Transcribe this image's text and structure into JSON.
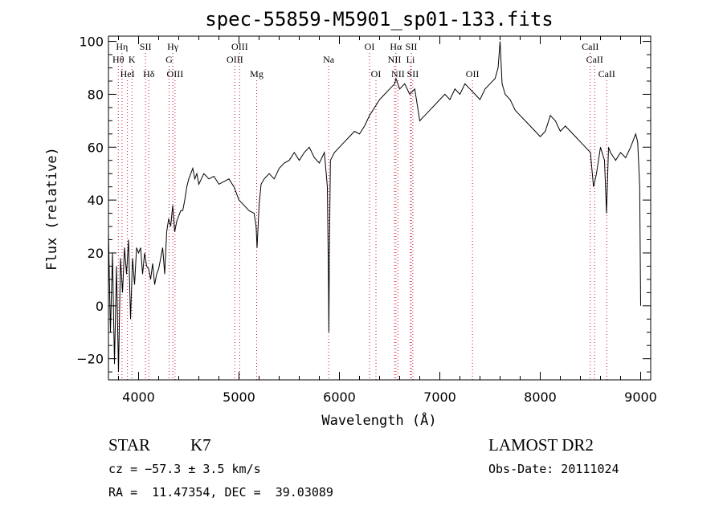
{
  "chart_data": {
    "type": "line",
    "title": "spec-55859-M5901_sp01-133.fits",
    "xlabel": "Wavelength (Å)",
    "ylabel": "Flux (relative)",
    "xlim": [
      3700,
      9100
    ],
    "ylim": [
      -28,
      102
    ],
    "xticks": [
      4000,
      5000,
      6000,
      7000,
      8000,
      9000
    ],
    "yticks": [
      -20,
      0,
      20,
      40,
      60,
      80,
      100
    ],
    "grid": false,
    "series": [
      {
        "x": [
          3700,
          3720,
          3740,
          3760,
          3780,
          3800,
          3820,
          3840,
          3860,
          3880,
          3900,
          3920,
          3940,
          3960,
          3980,
          4000,
          4020,
          4040,
          4060,
          4080,
          4100,
          4120,
          4140,
          4160,
          4180,
          4200,
          4220,
          4240,
          4260,
          4280,
          4300,
          4320,
          4340,
          4360,
          4380,
          4400,
          4420,
          4440,
          4460,
          4480,
          4500,
          4520,
          4540,
          4560,
          4580,
          4600,
          4650,
          4700,
          4750,
          4800,
          4850,
          4900,
          4950,
          5000,
          5050,
          5100,
          5150,
          5170,
          5180,
          5200,
          5220,
          5250,
          5300,
          5350,
          5400,
          5450,
          5500,
          5550,
          5600,
          5650,
          5700,
          5750,
          5800,
          5850,
          5880,
          5890,
          5895,
          5900,
          5910,
          5950,
          6000,
          6050,
          6100,
          6150,
          6200,
          6250,
          6300,
          6350,
          6400,
          6450,
          6500,
          6550,
          6563,
          6600,
          6650,
          6700,
          6750,
          6800,
          6850,
          6900,
          6950,
          7000,
          7050,
          7100,
          7150,
          7200,
          7250,
          7300,
          7350,
          7400,
          7450,
          7500,
          7550,
          7580,
          7600,
          7620,
          7650,
          7700,
          7750,
          7800,
          7850,
          7900,
          7950,
          8000,
          8050,
          8100,
          8150,
          8200,
          8250,
          8300,
          8350,
          8400,
          8450,
          8500,
          8530,
          8560,
          8600,
          8640,
          8660,
          8680,
          8700,
          8750,
          8800,
          8850,
          8900,
          8950,
          8970,
          8990,
          9000
        ],
        "y": [
          28,
          -10,
          20,
          -22,
          15,
          -25,
          18,
          5,
          22,
          12,
          25,
          -5,
          18,
          8,
          22,
          20,
          22,
          12,
          20,
          15,
          14,
          10,
          16,
          8,
          12,
          14,
          18,
          22,
          12,
          28,
          33,
          30,
          38,
          28,
          32,
          34,
          36,
          36,
          40,
          45,
          48,
          50,
          52,
          48,
          50,
          46,
          50,
          48,
          49,
          46,
          47,
          48,
          45,
          40,
          38,
          36,
          35,
          30,
          22,
          38,
          46,
          48,
          50,
          48,
          52,
          54,
          55,
          58,
          55,
          58,
          60,
          56,
          54,
          58,
          45,
          12,
          -10,
          20,
          55,
          58,
          60,
          62,
          64,
          66,
          65,
          68,
          72,
          75,
          78,
          80,
          82,
          84,
          86,
          82,
          84,
          80,
          82,
          70,
          72,
          74,
          76,
          78,
          80,
          78,
          82,
          80,
          84,
          82,
          80,
          78,
          82,
          84,
          86,
          90,
          100,
          84,
          80,
          78,
          74,
          72,
          70,
          68,
          66,
          64,
          66,
          72,
          70,
          66,
          68,
          66,
          64,
          62,
          60,
          58,
          45,
          50,
          60,
          55,
          35,
          60,
          58,
          55,
          58,
          56,
          60,
          65,
          62,
          45,
          0
        ]
      }
    ],
    "annotations": [
      {
        "label": "Hη",
        "x": 3835,
        "row": 1
      },
      {
        "label": "Hθ",
        "x": 3798,
        "row": 2
      },
      {
        "label": "K",
        "x": 3934,
        "row": 2
      },
      {
        "label": "HeI",
        "x": 3889,
        "row": 3
      },
      {
        "label": "SII",
        "x": 4069,
        "row": 1
      },
      {
        "label": "Hδ",
        "x": 4102,
        "row": 3
      },
      {
        "label": "Hγ",
        "x": 4341,
        "row": 1
      },
      {
        "label": "G",
        "x": 4304,
        "row": 2
      },
      {
        "label": "OIII",
        "x": 4363,
        "row": 3
      },
      {
        "label": "OIII",
        "x": 5007,
        "row": 1
      },
      {
        "label": "OIII",
        "x": 4959,
        "row": 2
      },
      {
        "label": "Mg",
        "x": 5176,
        "row": 3
      },
      {
        "label": "Na",
        "x": 5893,
        "row": 2
      },
      {
        "label": "OI",
        "x": 6300,
        "row": 1
      },
      {
        "label": "OI",
        "x": 6364,
        "row": 3
      },
      {
        "label": "Hα",
        "x": 6563,
        "row": 1
      },
      {
        "label": "SII",
        "x": 6716,
        "row": 1
      },
      {
        "label": "NII",
        "x": 6548,
        "row": 2
      },
      {
        "label": "Li",
        "x": 6708,
        "row": 2
      },
      {
        "label": "NII",
        "x": 6583,
        "row": 3
      },
      {
        "label": "SII",
        "x": 6731,
        "row": 3
      },
      {
        "label": "OII",
        "x": 7325,
        "row": 3
      },
      {
        "label": "CaII",
        "x": 8498,
        "row": 1
      },
      {
        "label": "CaII",
        "x": 8542,
        "row": 2
      },
      {
        "label": "CaII",
        "x": 8662,
        "row": 3
      }
    ],
    "line_colors": {
      "curve": "#000000",
      "marker": "#c8102e"
    }
  },
  "info": {
    "class": "STAR",
    "subclass": "K7",
    "survey": "LAMOST DR2",
    "cz": "cz = −57.3 ± 3.5 km/s",
    "obs_date": "Obs-Date: 20111024",
    "radec": "RA =  11.47354, DEC =  39.03089"
  }
}
